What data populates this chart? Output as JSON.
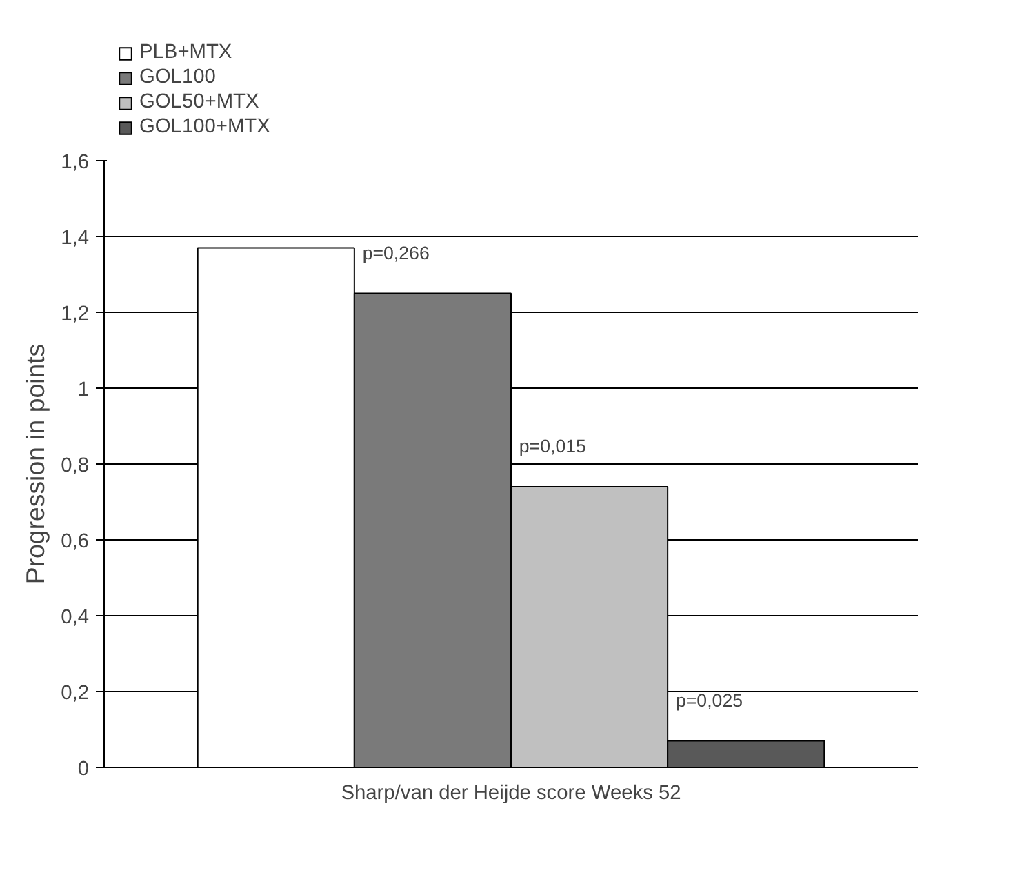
{
  "chart_data": {
    "type": "bar",
    "ylabel": "Progression in points",
    "categories": [
      "Sharp/van der Heijde score Weeks 52"
    ],
    "series": [
      {
        "name": "PLB+MTX",
        "color": "#ffffff",
        "values": [
          1.37
        ]
      },
      {
        "name": "GOL100",
        "color": "#7a7a7a",
        "values": [
          1.25
        ]
      },
      {
        "name": "GOL50+MTX",
        "color": "#c0c0c0",
        "values": [
          0.74
        ]
      },
      {
        "name": "GOL100+MTX",
        "color": "#595959",
        "values": [
          0.07
        ]
      }
    ],
    "ylim": [
      0,
      1.6
    ],
    "yticks": [
      {
        "value": 0,
        "label": "0"
      },
      {
        "value": 0.2,
        "label": "0,2"
      },
      {
        "value": 0.4,
        "label": "0,4"
      },
      {
        "value": 0.6,
        "label": "0,6"
      },
      {
        "value": 0.8,
        "label": "0,8"
      },
      {
        "value": 1,
        "label": "1"
      },
      {
        "value": 1.2,
        "label": "1,2"
      },
      {
        "value": 1.4,
        "label": "1,4"
      },
      {
        "value": 1.6,
        "label": "1,6"
      }
    ],
    "annotations": [
      "p=0,266",
      "p=0,015",
      "p=0,025"
    ],
    "grid": "y",
    "legend": "top left"
  }
}
